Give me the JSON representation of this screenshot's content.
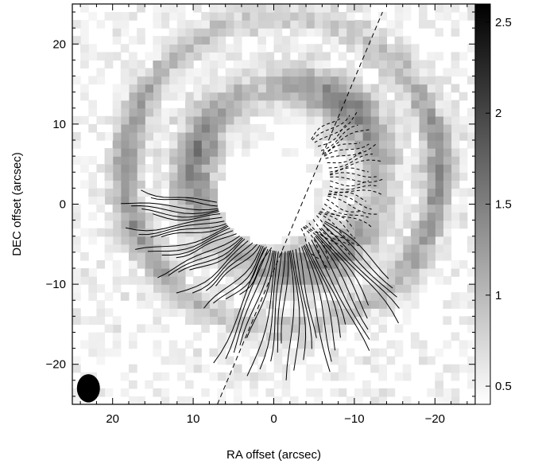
{
  "chart_data": {
    "type": "heatmap",
    "title": "",
    "xlabel": "RA offset (arcsec)",
    "ylabel": "DEC offset (arcsec)",
    "xlim": [
      25,
      -25
    ],
    "ylim": [
      -25,
      25
    ],
    "x_ticks": [
      20,
      10,
      0,
      -10,
      -20
    ],
    "x_tick_labels": [
      "20",
      "10",
      "0",
      "−10",
      "−20"
    ],
    "y_ticks": [
      20,
      10,
      0,
      -10,
      -20
    ],
    "y_tick_labels": [
      "20",
      "10",
      "0",
      "−10",
      "−20"
    ],
    "colorbar": {
      "range": [
        0.4,
        2.6
      ],
      "ticks": [
        2.5,
        2,
        1.5,
        1,
        0.5
      ],
      "tick_labels": [
        "2.5",
        "2",
        "1.5",
        "1",
        "0.5"
      ],
      "colormap": "gray_r"
    },
    "features": {
      "inner_ring": {
        "center": [
          -1.5,
          3.5
        ],
        "radius_arcsec": 11.5,
        "intensity": 1.3
      },
      "outer_ring": {
        "center": [
          -1.0,
          4.0
        ],
        "radius_arcsec": 19.5,
        "intensity": 1.1
      },
      "cavity": {
        "center": [
          1.0,
          1.0
        ],
        "radius_arcsec": 6
      },
      "dashed_line": {
        "x": [
          7,
          -13.5
        ],
        "y": [
          -25,
          24
        ]
      },
      "beam": {
        "x": 23,
        "y": -23,
        "major": 1.6,
        "minor": 1.3
      }
    },
    "grid": false
  },
  "colors": {
    "frame": "#000000",
    "background": "#ffffff"
  }
}
